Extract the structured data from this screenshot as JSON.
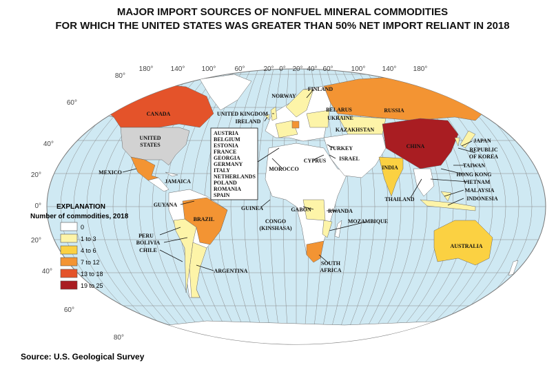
{
  "title": [
    "MAJOR IMPORT SOURCES OF NONFUEL MINERAL COMMODITIES",
    "FOR WHICH THE UNITED STATES WAS GREATER THAN 50% NET IMPORT RELIANT IN 2018"
  ],
  "longitude_labels": [
    "180°",
    "140°",
    "100°",
    "60°",
    "20°",
    "0°",
    "20°",
    "40°",
    "60°",
    "100°",
    "140°",
    "180°"
  ],
  "latitude_labels": [
    "80°",
    "60°",
    "40°",
    "20°",
    "0°",
    "20°",
    "40°",
    "60°",
    "80°"
  ],
  "legend": {
    "title": "EXPLANATION",
    "subtitle": "Number of commodities, 2018",
    "items": [
      {
        "label": "0",
        "color": "#ffffff"
      },
      {
        "label": "1 to 3",
        "color": "#fdf4a8"
      },
      {
        "label": "4 to 6",
        "color": "#fbd142"
      },
      {
        "label": "7 to 12",
        "color": "#f39433"
      },
      {
        "label": "13 to 18",
        "color": "#e4532a"
      },
      {
        "label": "19 to 25",
        "color": "#a91d22"
      }
    ]
  },
  "countries": [
    "CANADA",
    [
      "UNITED",
      "STATES"
    ],
    "MEXICO",
    "JAMAICA",
    "GUYANA",
    "BRAZIL",
    "PERU",
    "BOLIVIA",
    "CHILE",
    "ARGENTINA",
    "NORWAY",
    "FINLAND",
    "UNITED KINGDOM",
    "IRELAND",
    "BELARUS",
    "UKRAINE",
    "RUSSIA",
    "KAZAKHSTAN",
    "CHINA",
    "JAPAN",
    [
      "REPUBLIC",
      "OF KOREA"
    ],
    "TAIWAN",
    "HONG KONG",
    "VIETNAM",
    "MALAYSIA",
    "INDONESIA",
    "THAILAND",
    "INDIA",
    "TURKEY",
    "ISRAEL",
    "CYPRUS",
    "MOROCCO",
    "GUINEA",
    "GABON",
    "RWANDA",
    [
      "CONGO",
      "(KINSHASA)"
    ],
    "MOZAMBIQUE",
    [
      "SOUTH",
      "AFRICA"
    ],
    "AUSTRALIA"
  ],
  "europe_box": [
    "AUSTRIA",
    "BELGIUM",
    "ESTONIA",
    "FRANCE",
    "GEORGIA",
    "GERMANY",
    "ITALY",
    "NETHERLANDS",
    "POLAND",
    "ROMANIA",
    "SPAIN"
  ],
  "source": "Source: U.S. Geological Survey"
}
